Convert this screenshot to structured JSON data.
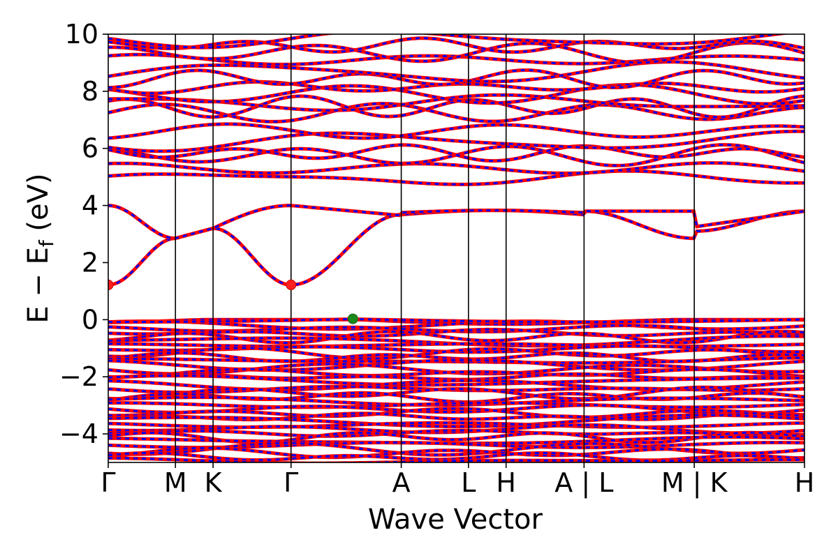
{
  "chart_data": {
    "type": "line",
    "xlabel": "Wave Vector",
    "ylabel": "E − E",
    "ylabel_subscript": "f",
    "ylabel_unit": " (eV)",
    "ylim": [
      -5,
      10
    ],
    "yticks": [
      -4,
      -2,
      0,
      2,
      4,
      6,
      8,
      10
    ],
    "ytick_labels": [
      "−4",
      "−2",
      "0",
      "2",
      "4",
      "6",
      "8",
      "10"
    ],
    "kpath_positions": [
      0,
      0.5,
      0.78,
      1.36,
      2.18,
      2.68,
      2.96,
      3.54,
      4.36,
      5.18
    ],
    "kpath_labels": [
      "Γ",
      "M",
      "K",
      "Γ",
      "A",
      "L",
      "H",
      "A | L",
      "M | K",
      "H"
    ],
    "series_colors": {
      "spin_up": "#ff0000",
      "spin_down": "#0000ff"
    },
    "markers": [
      {
        "name": "CBM",
        "x": 0,
        "y": 1.22,
        "color": "#ff2020"
      },
      {
        "name": "CBM",
        "x": 1.36,
        "y": 1.22,
        "color": "#ff2020"
      },
      {
        "name": "VBM",
        "x": 1.82,
        "y": 0.03,
        "color": "#1a8a1a"
      }
    ]
  }
}
